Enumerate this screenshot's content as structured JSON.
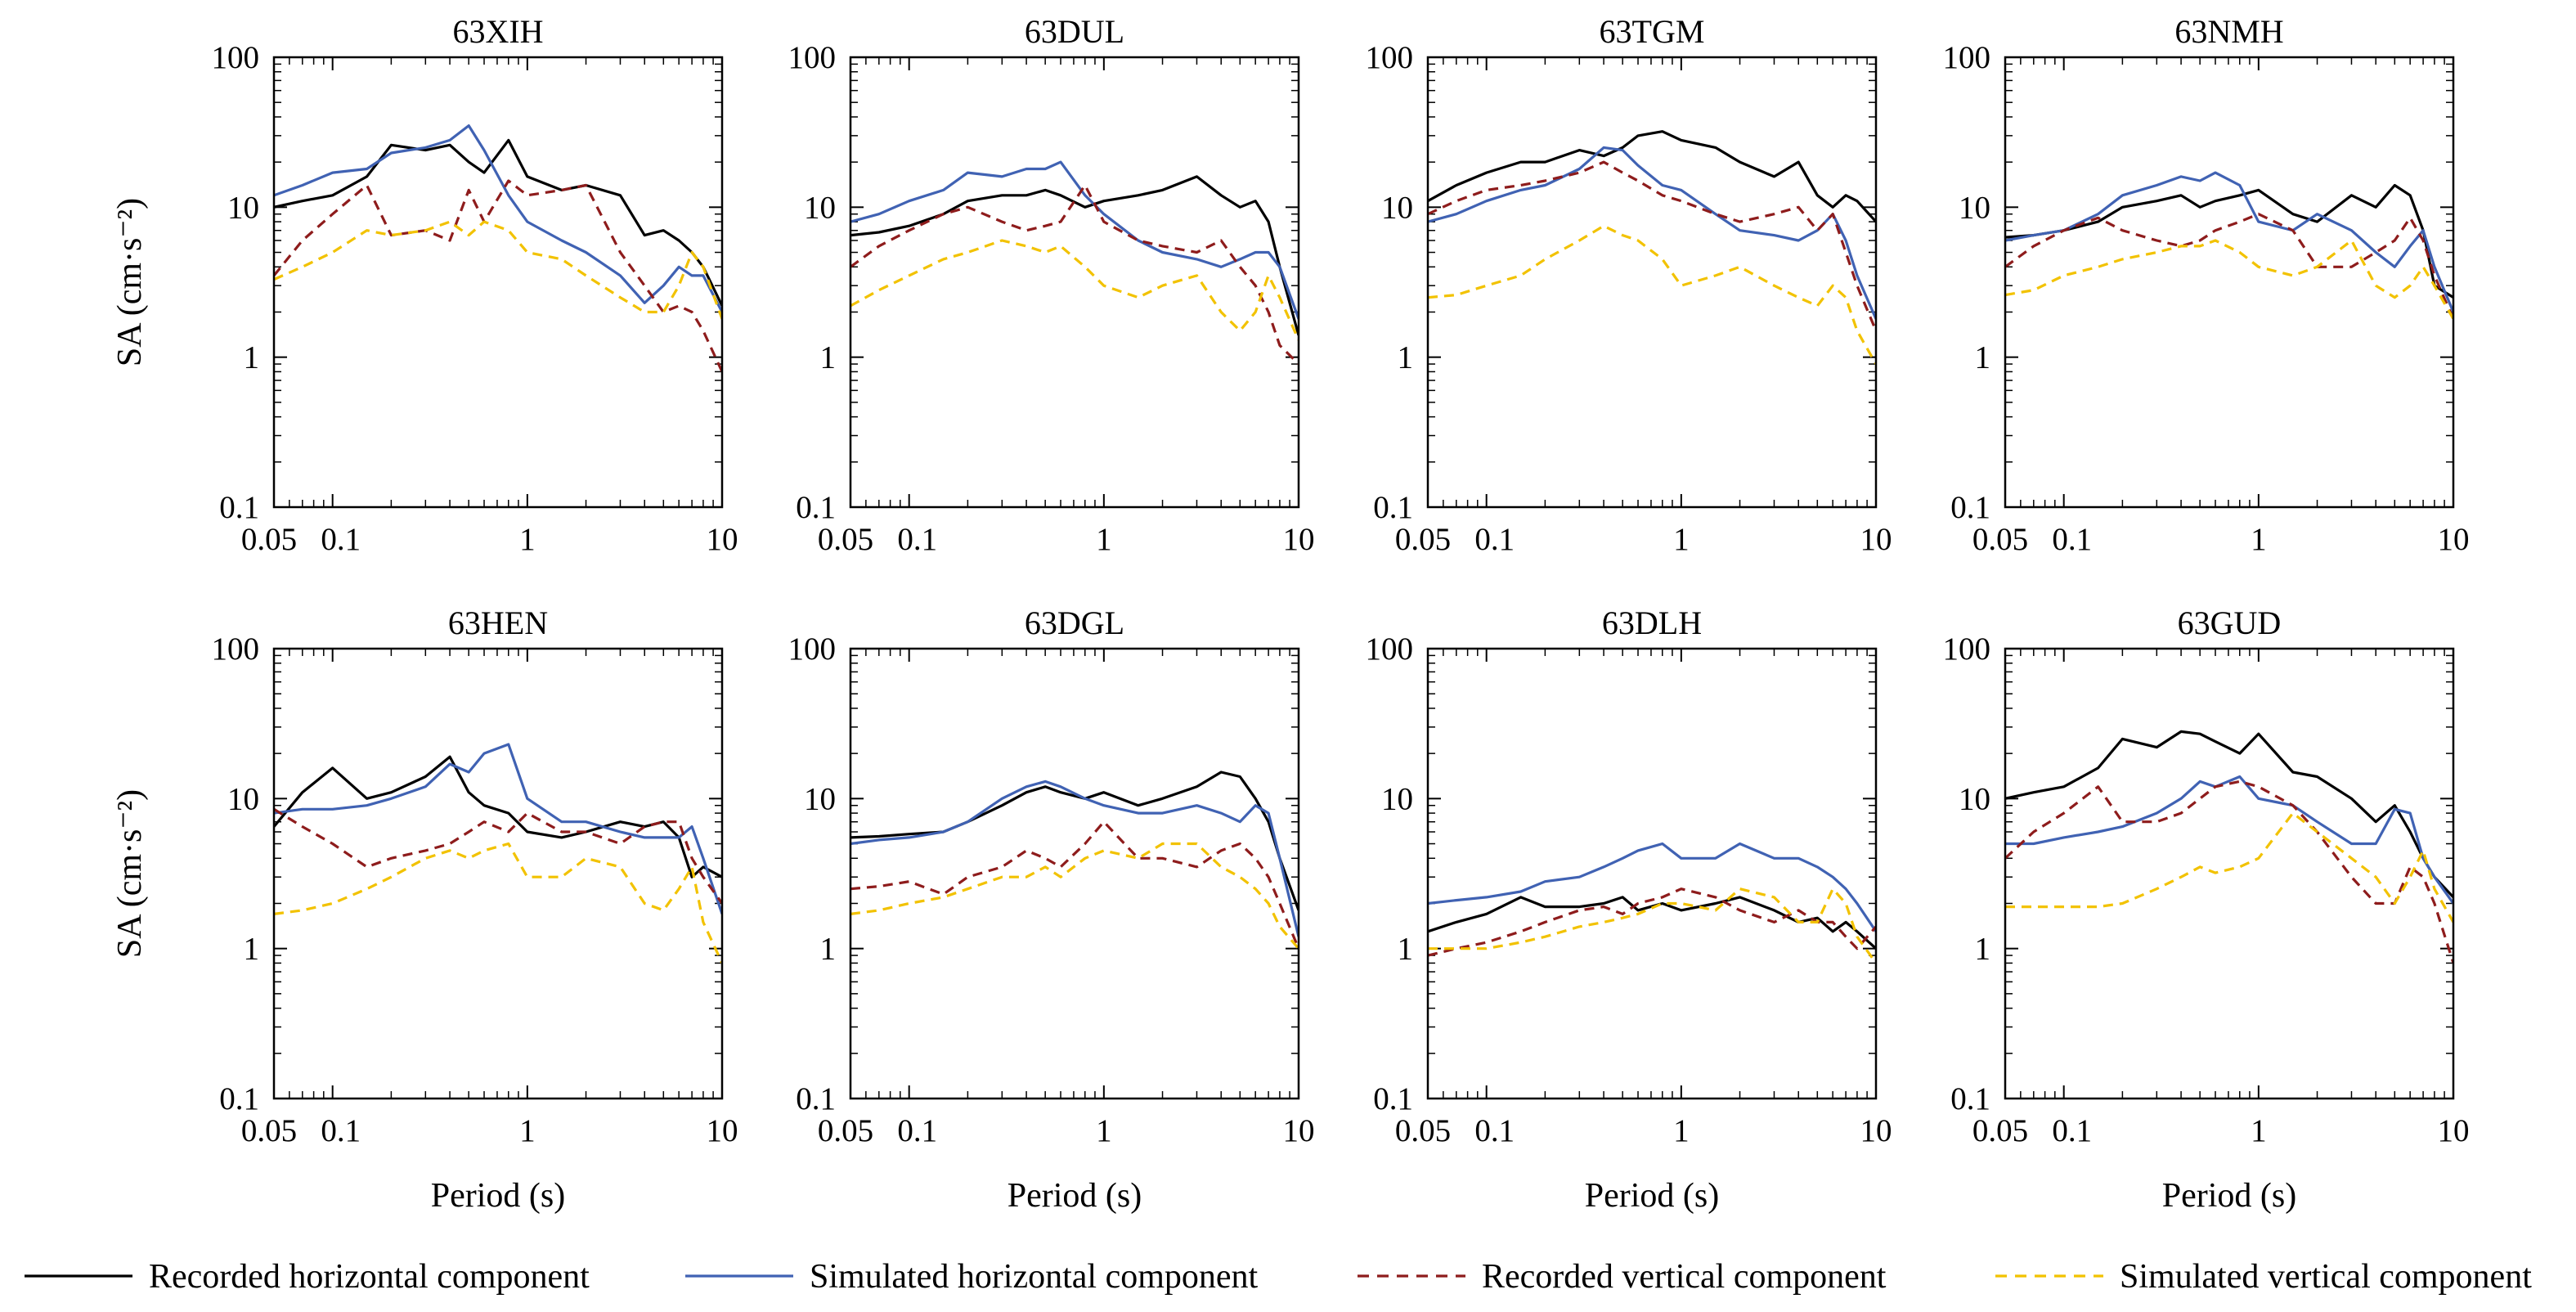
{
  "figure": {
    "ylabel": "SA (cm·s⁻²)",
    "xlabel": "Period (s)",
    "legend": [
      {
        "label": "Recorded horizontal component",
        "color": "#000000",
        "style": "solid"
      },
      {
        "label": "Simulated horizontal component",
        "color": "#4062b3",
        "style": "solid"
      },
      {
        "label": "Recorded vertical component",
        "color": "#8e1c1c",
        "style": "dashed"
      },
      {
        "label": "Simulated vertical component",
        "color": "#f2c200",
        "style": "dashed"
      }
    ],
    "legend_position": "bottom",
    "x_ticks": [
      "0.05",
      "0.1",
      "1",
      "10"
    ],
    "y_ticks": [
      "0.1",
      "1",
      "10",
      "100"
    ]
  },
  "chart_data": [
    {
      "type": "line",
      "title": "63XIH",
      "xscale": "log",
      "yscale": "log",
      "xlim": [
        0.05,
        10
      ],
      "ylim": [
        0.1,
        100
      ],
      "x": [
        0.05,
        0.07,
        0.1,
        0.15,
        0.2,
        0.3,
        0.4,
        0.5,
        0.6,
        0.8,
        1.0,
        1.5,
        2.0,
        3.0,
        4.0,
        5.0,
        6.0,
        7.0,
        8.0,
        10.0
      ],
      "series": [
        {
          "name": "Recorded horizontal component",
          "values": [
            10,
            11,
            12,
            16,
            26,
            24,
            26,
            20,
            17,
            28,
            16,
            13,
            14,
            12,
            6.5,
            7,
            6,
            5,
            4,
            2.2
          ]
        },
        {
          "name": "Simulated horizontal component",
          "values": [
            12,
            14,
            17,
            18,
            23,
            25,
            28,
            35,
            24,
            12,
            8,
            6,
            5,
            3.5,
            2.3,
            3,
            4,
            3.5,
            3.5,
            2
          ]
        },
        {
          "name": "Recorded vertical component",
          "values": [
            3.5,
            6,
            9,
            14,
            6.5,
            7,
            6,
            13,
            8,
            15,
            12,
            13,
            14,
            5,
            3,
            2,
            2.2,
            2,
            1.5,
            0.8
          ]
        },
        {
          "name": "Simulated vertical component",
          "values": [
            3.3,
            4,
            5,
            7,
            6.5,
            7,
            8,
            6.5,
            8,
            7,
            5,
            4.5,
            3.5,
            2.5,
            2,
            2,
            3,
            5,
            4,
            1.8
          ]
        }
      ]
    },
    {
      "type": "line",
      "title": "63DUL",
      "xscale": "log",
      "yscale": "log",
      "xlim": [
        0.05,
        10
      ],
      "ylim": [
        0.1,
        100
      ],
      "x": [
        0.05,
        0.07,
        0.1,
        0.15,
        0.2,
        0.3,
        0.4,
        0.5,
        0.6,
        0.8,
        1.0,
        1.5,
        2.0,
        3.0,
        4.0,
        5.0,
        6.0,
        7.0,
        8.0,
        10.0
      ],
      "series": [
        {
          "name": "Recorded horizontal component",
          "values": [
            6.5,
            6.8,
            7.5,
            9,
            11,
            12,
            12,
            13,
            12,
            10,
            11,
            12,
            13,
            16,
            12,
            10,
            11,
            8,
            4,
            1.4
          ]
        },
        {
          "name": "Simulated horizontal component",
          "values": [
            8,
            9,
            11,
            13,
            17,
            16,
            18,
            18,
            20,
            12,
            9,
            6,
            5,
            4.5,
            4,
            4.5,
            5,
            5,
            4,
            1.8
          ]
        },
        {
          "name": "Recorded vertical component",
          "values": [
            4,
            5.5,
            7,
            9,
            10,
            8,
            7,
            7.5,
            8,
            14,
            8,
            6,
            5.5,
            5,
            6,
            4,
            3,
            2,
            1.2,
            0.9
          ]
        },
        {
          "name": "Simulated vertical component",
          "values": [
            2.2,
            2.8,
            3.5,
            4.5,
            5,
            6,
            5.5,
            5,
            5.5,
            4,
            3,
            2.5,
            3,
            3.5,
            2,
            1.5,
            2,
            3.5,
            2.5,
            1.3
          ]
        }
      ]
    },
    {
      "type": "line",
      "title": "63TGM",
      "xscale": "log",
      "yscale": "log",
      "xlim": [
        0.05,
        10
      ],
      "ylim": [
        0.1,
        100
      ],
      "x": [
        0.05,
        0.07,
        0.1,
        0.15,
        0.2,
        0.3,
        0.4,
        0.5,
        0.6,
        0.8,
        1.0,
        1.5,
        2.0,
        3.0,
        4.0,
        5.0,
        6.0,
        7.0,
        8.0,
        10.0
      ],
      "series": [
        {
          "name": "Recorded horizontal component",
          "values": [
            11,
            14,
            17,
            20,
            20,
            24,
            22,
            25,
            30,
            32,
            28,
            25,
            20,
            16,
            20,
            12,
            10,
            12,
            11,
            8
          ]
        },
        {
          "name": "Simulated horizontal component",
          "values": [
            8,
            9,
            11,
            13,
            14,
            18,
            25,
            24,
            19,
            14,
            13,
            9,
            7,
            6.5,
            6,
            7,
            9,
            6,
            3.5,
            1.8
          ]
        },
        {
          "name": "Recorded vertical component",
          "values": [
            9,
            11,
            13,
            14,
            15,
            17,
            20,
            17,
            15,
            12,
            11,
            9,
            8,
            9,
            10,
            7,
            9,
            5,
            3,
            1.5
          ]
        },
        {
          "name": "Simulated vertical component",
          "values": [
            2.5,
            2.6,
            3,
            3.5,
            4.5,
            6,
            7.5,
            6.5,
            6,
            4.5,
            3,
            3.5,
            4,
            3,
            2.5,
            2.2,
            3,
            2.5,
            1.5,
            0.9
          ]
        }
      ]
    },
    {
      "type": "line",
      "title": "63NMH",
      "xscale": "log",
      "yscale": "log",
      "xlim": [
        0.05,
        10
      ],
      "ylim": [
        0.1,
        100
      ],
      "x": [
        0.05,
        0.07,
        0.1,
        0.15,
        0.2,
        0.3,
        0.4,
        0.5,
        0.6,
        0.8,
        1.0,
        1.5,
        2.0,
        3.0,
        4.0,
        5.0,
        6.0,
        7.0,
        8.0,
        10.0
      ],
      "series": [
        {
          "name": "Recorded horizontal component",
          "values": [
            6.3,
            6.5,
            7,
            8,
            10,
            11,
            12,
            10,
            11,
            12,
            13,
            9,
            8,
            12,
            10,
            14,
            12,
            7,
            3,
            2.5
          ]
        },
        {
          "name": "Simulated horizontal component",
          "values": [
            6,
            6.5,
            7,
            9,
            12,
            14,
            16,
            15,
            17,
            14,
            8,
            7,
            9,
            7,
            5,
            4,
            5.5,
            7,
            4,
            2
          ]
        },
        {
          "name": "Recorded vertical component",
          "values": [
            4,
            5.5,
            7,
            8.5,
            7,
            6,
            5.5,
            6,
            7,
            8,
            9,
            7,
            4,
            4,
            5,
            6,
            8.5,
            6,
            3.5,
            1.8
          ]
        },
        {
          "name": "Simulated vertical component",
          "values": [
            2.6,
            2.8,
            3.5,
            4,
            4.5,
            5,
            5.5,
            5.5,
            6,
            5,
            4,
            3.5,
            4,
            6,
            3,
            2.5,
            3,
            4,
            3,
            1.8
          ]
        }
      ]
    },
    {
      "type": "line",
      "title": "63HEN",
      "xscale": "log",
      "yscale": "log",
      "xlim": [
        0.05,
        10
      ],
      "ylim": [
        0.1,
        100
      ],
      "x": [
        0.05,
        0.07,
        0.1,
        0.15,
        0.2,
        0.3,
        0.4,
        0.5,
        0.6,
        0.8,
        1.0,
        1.5,
        2.0,
        3.0,
        4.0,
        5.0,
        6.0,
        7.0,
        8.0,
        10.0
      ],
      "series": [
        {
          "name": "Recorded horizontal component",
          "values": [
            6.5,
            11,
            16,
            10,
            11,
            14,
            19,
            11,
            9,
            8,
            6,
            5.5,
            6,
            7,
            6.5,
            7,
            5.5,
            3,
            3.5,
            3
          ]
        },
        {
          "name": "Simulated horizontal component",
          "values": [
            8,
            8.5,
            8.5,
            9,
            10,
            12,
            17,
            15,
            20,
            23,
            10,
            7,
            7,
            6,
            5.5,
            5.5,
            5.5,
            6.5,
            4,
            1.7
          ]
        },
        {
          "name": "Recorded vertical component",
          "values": [
            8.5,
            6.5,
            5,
            3.5,
            4,
            4.5,
            5,
            6,
            7,
            6,
            8,
            6,
            6,
            5,
            6.5,
            7,
            7,
            4,
            3,
            2
          ]
        },
        {
          "name": "Simulated vertical component",
          "values": [
            1.7,
            1.8,
            2,
            2.5,
            3,
            4,
            4.5,
            4,
            4.5,
            5,
            3,
            3,
            4,
            3.5,
            2,
            1.8,
            2.5,
            3.5,
            1.5,
            0.8
          ]
        }
      ]
    },
    {
      "type": "line",
      "title": "63DGL",
      "xscale": "log",
      "yscale": "log",
      "xlim": [
        0.05,
        10
      ],
      "ylim": [
        0.1,
        100
      ],
      "x": [
        0.05,
        0.07,
        0.1,
        0.15,
        0.2,
        0.3,
        0.4,
        0.5,
        0.6,
        0.8,
        1.0,
        1.5,
        2.0,
        3.0,
        4.0,
        5.0,
        6.0,
        7.0,
        8.0,
        10.0
      ],
      "series": [
        {
          "name": "Recorded horizontal component",
          "values": [
            5.5,
            5.6,
            5.8,
            6,
            7,
            9,
            11,
            12,
            11,
            10,
            11,
            9,
            10,
            12,
            15,
            14,
            10,
            7,
            4,
            1.8
          ]
        },
        {
          "name": "Simulated horizontal component",
          "values": [
            5,
            5.3,
            5.5,
            6,
            7,
            10,
            12,
            13,
            12,
            10,
            9,
            8,
            8,
            9,
            8,
            7,
            9,
            8,
            4,
            1.2
          ]
        },
        {
          "name": "Recorded vertical component",
          "values": [
            2.5,
            2.6,
            2.8,
            2.3,
            3,
            3.5,
            4.5,
            4,
            3.5,
            5,
            7,
            4,
            4,
            3.5,
            4.5,
            5,
            4,
            3,
            2,
            1
          ]
        },
        {
          "name": "Simulated vertical component",
          "values": [
            1.7,
            1.8,
            2,
            2.2,
            2.5,
            3,
            3,
            3.5,
            3,
            4,
            4.5,
            4,
            5,
            5,
            3.5,
            3,
            2.5,
            2,
            1.4,
            1
          ]
        }
      ]
    },
    {
      "type": "line",
      "title": "63DLH",
      "xscale": "log",
      "yscale": "log",
      "xlim": [
        0.05,
        10
      ],
      "ylim": [
        0.1,
        100
      ],
      "x": [
        0.05,
        0.07,
        0.1,
        0.15,
        0.2,
        0.3,
        0.4,
        0.5,
        0.6,
        0.8,
        1.0,
        1.5,
        2.0,
        3.0,
        4.0,
        5.0,
        6.0,
        7.0,
        8.0,
        10.0
      ],
      "series": [
        {
          "name": "Recorded horizontal component",
          "values": [
            1.3,
            1.5,
            1.7,
            2.2,
            1.9,
            1.9,
            2,
            2.2,
            1.8,
            2,
            1.8,
            2,
            2.2,
            1.8,
            1.5,
            1.6,
            1.3,
            1.5,
            1.3,
            1
          ]
        },
        {
          "name": "Simulated horizontal component",
          "values": [
            2,
            2.1,
            2.2,
            2.4,
            2.8,
            3,
            3.5,
            4,
            4.5,
            5,
            4,
            4,
            5,
            4,
            4,
            3.5,
            3,
            2.5,
            2,
            1.3
          ]
        },
        {
          "name": "Recorded vertical component",
          "values": [
            0.9,
            1,
            1.1,
            1.3,
            1.5,
            1.8,
            1.9,
            1.7,
            2,
            2.2,
            2.5,
            2.2,
            1.8,
            1.5,
            1.8,
            1.5,
            1.5,
            1.2,
            1,
            1.4
          ]
        },
        {
          "name": "Simulated vertical component",
          "values": [
            1,
            1,
            1,
            1.1,
            1.2,
            1.4,
            1.5,
            1.6,
            1.7,
            2,
            2,
            1.8,
            2.5,
            2.2,
            1.5,
            1.5,
            2.5,
            2,
            1.2,
            0.8
          ]
        }
      ]
    },
    {
      "type": "line",
      "title": "63GUD",
      "xscale": "log",
      "yscale": "log",
      "xlim": [
        0.05,
        10
      ],
      "ylim": [
        0.1,
        100
      ],
      "x": [
        0.05,
        0.07,
        0.1,
        0.15,
        0.2,
        0.3,
        0.4,
        0.5,
        0.6,
        0.8,
        1.0,
        1.5,
        2.0,
        3.0,
        4.0,
        5.0,
        6.0,
        7.0,
        8.0,
        10.0
      ],
      "series": [
        {
          "name": "Recorded horizontal component",
          "values": [
            10,
            11,
            12,
            16,
            25,
            22,
            28,
            27,
            24,
            20,
            27,
            15,
            14,
            10,
            7,
            9,
            6,
            4,
            3,
            2.2
          ]
        },
        {
          "name": "Simulated horizontal component",
          "values": [
            5,
            5,
            5.5,
            6,
            6.5,
            8,
            10,
            13,
            12,
            14,
            10,
            9,
            7,
            5,
            5,
            8.5,
            8,
            4,
            3,
            2
          ]
        },
        {
          "name": "Recorded vertical component",
          "values": [
            4,
            6,
            8,
            12,
            7,
            7,
            8,
            10,
            12,
            13,
            12,
            9,
            6,
            3,
            2,
            2,
            3.5,
            3,
            2,
            0.8
          ]
        },
        {
          "name": "Simulated vertical component",
          "values": [
            1.9,
            1.9,
            1.9,
            1.9,
            2,
            2.5,
            3,
            3.5,
            3.2,
            3.5,
            4,
            8,
            6,
            4,
            3,
            2,
            3,
            4.5,
            2.5,
            1.5
          ]
        }
      ]
    }
  ]
}
